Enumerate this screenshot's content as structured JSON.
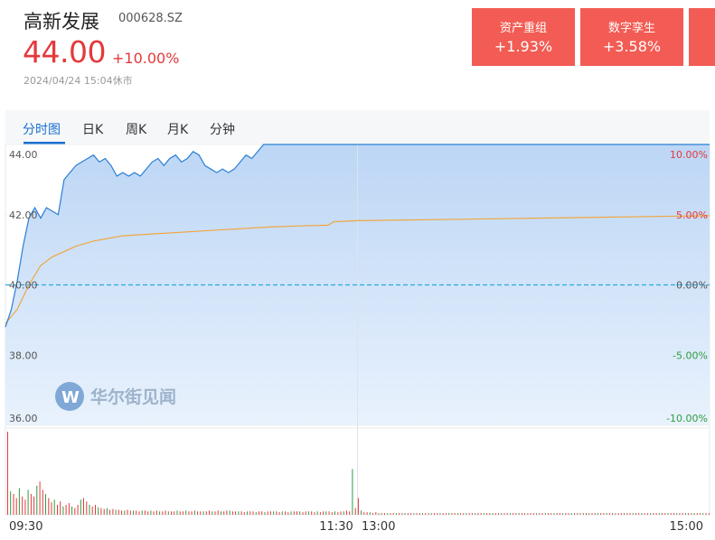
{
  "stock": {
    "name": "高新发展",
    "code": "000628.SZ",
    "price": "44.00",
    "change_pct": "+10.00%",
    "timestamp": "2024/04/24 15:04休市"
  },
  "sectors": [
    {
      "name": "资产重组",
      "change": "+1.93%"
    },
    {
      "name": "数字孪生",
      "change": "+3.58%"
    }
  ],
  "tabs": [
    {
      "label": "分时图",
      "active": true
    },
    {
      "label": "日K",
      "active": false
    },
    {
      "label": "周K",
      "active": false
    },
    {
      "label": "月K",
      "active": false
    },
    {
      "label": "分钟",
      "active": false
    }
  ],
  "watermark": "华尔街见闻",
  "colors": {
    "up": "#e4393c",
    "down": "#2e9d3f",
    "price_line": "#2a7fd4",
    "avg_line": "#f0a640",
    "area_fill": "#c5dcf6",
    "prev_close_line": "#2aa9e0",
    "accent": "#1a6fd0"
  },
  "chart_data": {
    "type": "line",
    "prev_close": 40.0,
    "ylim": [
      36.0,
      44.0
    ],
    "y_ticks_left": [
      "44.00",
      "42.00",
      "40.00",
      "38.00",
      "36.00"
    ],
    "y_ticks_right": [
      "10.00%",
      "5.00%",
      "0.00%",
      "-5.00%",
      "-10.00%"
    ],
    "time_ticks": [
      "09:30",
      "11:30",
      "13:00",
      "15:00"
    ],
    "total_minutes": 240,
    "series": [
      {
        "role": "price",
        "x": [
          0,
          2,
          4,
          6,
          8,
          10,
          12,
          14,
          16,
          18,
          20,
          22,
          24,
          26,
          28,
          30,
          32,
          34,
          36,
          38,
          40,
          42,
          44,
          46,
          48,
          50,
          52,
          54,
          56,
          58,
          60,
          62,
          64,
          66,
          68,
          70,
          72,
          74,
          76,
          78,
          80,
          82,
          84,
          86,
          88,
          90,
          92,
          94,
          96,
          98,
          100,
          102,
          104,
          106,
          108,
          110,
          112,
          114,
          116,
          118,
          120,
          240
        ],
        "y": [
          38.8,
          39.3,
          40.1,
          41.1,
          41.9,
          42.2,
          41.9,
          42.2,
          42.1,
          42.0,
          43.0,
          43.2,
          43.4,
          43.5,
          43.6,
          43.7,
          43.5,
          43.6,
          43.4,
          43.1,
          43.2,
          43.1,
          43.2,
          43.1,
          43.3,
          43.5,
          43.6,
          43.4,
          43.6,
          43.7,
          43.5,
          43.6,
          43.8,
          43.7,
          43.4,
          43.3,
          43.2,
          43.3,
          43.2,
          43.3,
          43.5,
          43.7,
          43.6,
          43.8,
          44.0,
          44.0,
          44.0,
          44.0,
          44.0,
          44.0,
          44.0,
          44.0,
          44.0,
          44.0,
          44.0,
          44.0,
          44.0,
          44.0,
          44.0,
          44.0,
          44.0,
          44.0
        ]
      },
      {
        "role": "average",
        "x": [
          0,
          4,
          8,
          12,
          16,
          20,
          24,
          30,
          40,
          50,
          60,
          70,
          80,
          90,
          100,
          110,
          112,
          120,
          240
        ],
        "y": [
          38.9,
          39.3,
          40.0,
          40.55,
          40.8,
          40.95,
          41.1,
          41.25,
          41.4,
          41.45,
          41.5,
          41.55,
          41.6,
          41.65,
          41.68,
          41.7,
          41.8,
          41.83,
          41.97
        ]
      },
      {
        "role": "volume",
        "values": [
          1.0,
          0.28,
          0.25,
          0.2,
          0.32,
          0.22,
          0.18,
          0.3,
          0.25,
          0.22,
          0.35,
          0.4,
          0.3,
          0.25,
          0.2,
          0.15,
          0.18,
          0.12,
          0.16,
          0.1,
          0.12,
          0.14,
          0.1,
          0.08,
          0.12,
          0.18,
          0.2,
          0.16,
          0.12,
          0.1,
          0.12,
          0.09,
          0.08,
          0.07,
          0.08,
          0.06,
          0.07,
          0.06,
          0.06,
          0.05,
          0.05,
          0.06,
          0.05,
          0.05,
          0.05,
          0.04,
          0.05,
          0.05,
          0.04,
          0.05,
          0.04,
          0.05,
          0.04,
          0.04,
          0.05,
          0.04,
          0.04,
          0.04,
          0.05,
          0.04,
          0.04,
          0.05,
          0.04,
          0.04,
          0.05,
          0.04,
          0.04,
          0.04,
          0.04,
          0.05,
          0.04,
          0.04,
          0.05,
          0.04,
          0.04,
          0.05,
          0.05,
          0.04,
          0.04,
          0.04,
          0.04,
          0.03,
          0.04,
          0.04,
          0.04,
          0.03,
          0.04,
          0.04,
          0.03,
          0.04,
          0.04,
          0.04,
          0.04,
          0.03,
          0.04,
          0.04,
          0.03,
          0.04,
          0.04,
          0.04,
          0.04,
          0.03,
          0.04,
          0.04,
          0.04,
          0.03,
          0.04,
          0.03,
          0.04,
          0.04,
          0.04,
          0.03,
          0.04,
          0.03,
          0.04,
          0.04,
          0.05,
          0.04,
          0.55,
          0.08,
          0.2,
          0.05,
          0.03,
          0.03,
          0.03,
          0.02,
          0.03,
          0.02,
          0.02,
          0.02,
          0.02,
          0.02,
          0.02,
          0.02,
          0.02,
          0.02,
          0.02,
          0.02,
          0.02,
          0.02,
          0.02,
          0.02,
          0.02,
          0.02,
          0.02,
          0.02,
          0.02,
          0.02,
          0.02,
          0.02,
          0.02,
          0.02,
          0.02,
          0.02,
          0.02,
          0.02,
          0.02,
          0.02,
          0.02,
          0.02,
          0.02,
          0.02,
          0.02,
          0.02,
          0.02,
          0.02,
          0.02,
          0.02,
          0.02,
          0.02,
          0.02,
          0.02,
          0.02,
          0.02,
          0.02,
          0.02,
          0.02,
          0.02,
          0.02,
          0.02,
          0.02,
          0.02,
          0.02,
          0.02,
          0.02,
          0.02,
          0.02,
          0.02,
          0.02,
          0.02,
          0.02,
          0.02,
          0.02,
          0.02,
          0.02,
          0.02,
          0.02,
          0.02,
          0.02,
          0.02,
          0.02,
          0.02,
          0.02,
          0.02,
          0.02,
          0.02,
          0.02,
          0.02,
          0.02,
          0.02,
          0.02,
          0.02,
          0.02,
          0.02,
          0.02,
          0.02,
          0.02,
          0.02,
          0.02,
          0.02,
          0.02,
          0.02,
          0.02,
          0.02,
          0.02,
          0.02,
          0.02,
          0.02,
          0.02,
          0.02,
          0.02,
          0.02,
          0.02,
          0.02,
          0.02,
          0.02,
          0.02,
          0.02,
          0.02,
          0.02,
          0.02
        ]
      }
    ]
  }
}
